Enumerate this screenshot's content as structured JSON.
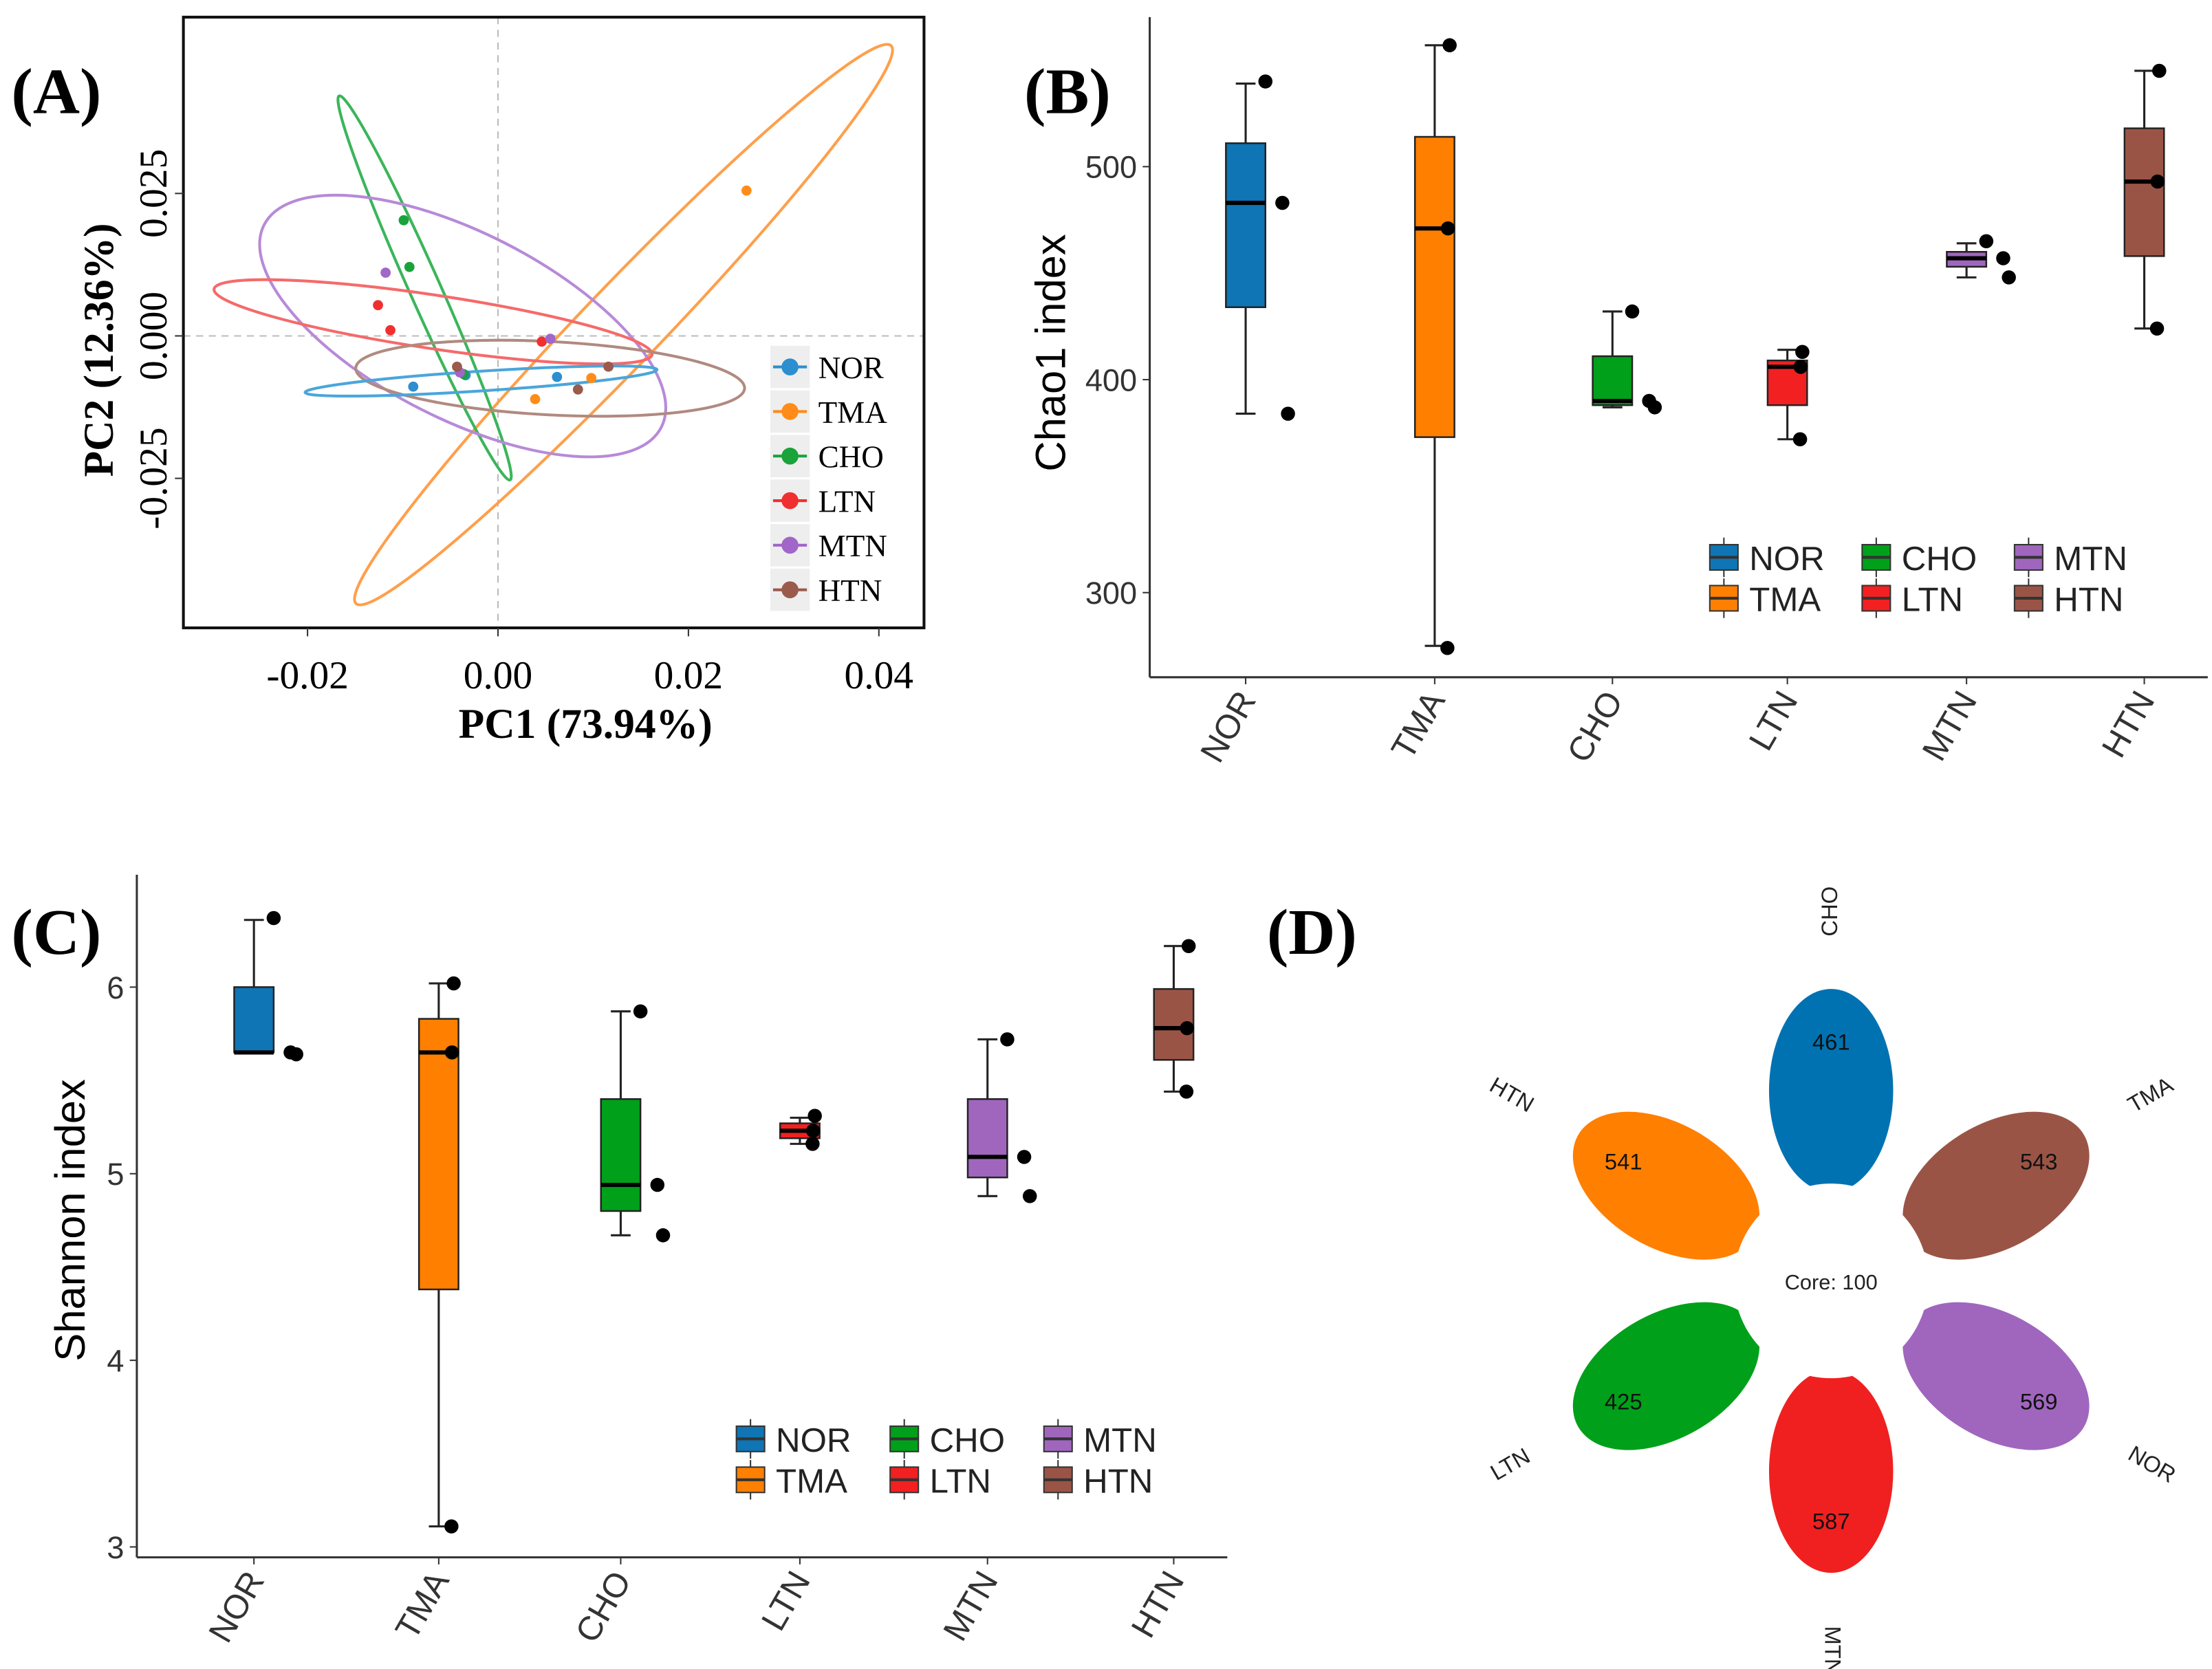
{
  "chart_data": [
    {
      "panel": "(A)",
      "type": "scatter",
      "xlabel": "PC1 (73.94%)",
      "ylabel": "PC2 (12.36%)",
      "xlim": [
        -0.033,
        0.045
      ],
      "ylim": [
        -0.0515,
        0.056
      ],
      "xticks": [
        {
          "v": -0.02,
          "label": "-0.02"
        },
        {
          "v": 0.0,
          "label": "0.00"
        },
        {
          "v": 0.02,
          "label": "0.02"
        },
        {
          "v": 0.04,
          "label": "0.04"
        }
      ],
      "yticks": [
        {
          "v": -0.025,
          "label": "-0.025"
        },
        {
          "v": 0.0,
          "label": "0.000"
        },
        {
          "v": 0.025,
          "label": "0.025"
        }
      ],
      "grid": false,
      "legend": "right",
      "series": [
        {
          "name": "NOR",
          "color": "#2c8fcf",
          "points": [
            [
              -0.0089,
              -0.0089
            ],
            [
              -0.0034,
              -0.0069
            ],
            [
              0.0062,
              -0.0072
            ]
          ]
        },
        {
          "name": "TMA",
          "color": "#ff8c1a",
          "points": [
            [
              0.0261,
              0.0255
            ],
            [
              0.0039,
              -0.0111
            ],
            [
              0.0098,
              -0.0074
            ]
          ]
        },
        {
          "name": "CHO",
          "color": "#1aa33a",
          "points": [
            [
              -0.0099,
              0.0203
            ],
            [
              -0.0093,
              0.0121
            ],
            [
              -0.0036,
              -0.0067
            ]
          ]
        },
        {
          "name": "LTN",
          "color": "#f03030",
          "points": [
            [
              -0.0126,
              0.0054
            ],
            [
              -0.0113,
              0.001
            ],
            [
              0.0046,
              -0.001
            ]
          ]
        },
        {
          "name": "MTN",
          "color": "#a066c8",
          "points": [
            [
              -0.0118,
              0.0111
            ],
            [
              0.0055,
              -0.0005
            ],
            [
              -0.004,
              -0.0064
            ]
          ]
        },
        {
          "name": "HTN",
          "color": "#9a5a4c",
          "points": [
            [
              -0.0043,
              -0.0054
            ],
            [
              0.0084,
              -0.0094
            ],
            [
              0.0116,
              -0.0054
            ]
          ]
        }
      ]
    },
    {
      "panel": "(B)",
      "type": "box",
      "ylabel": "Chao1 index",
      "ylim": [
        262,
        571
      ],
      "yticks": [
        {
          "v": 300,
          "label": "300"
        },
        {
          "v": 400,
          "label": "400"
        },
        {
          "v": 500,
          "label": "500"
        }
      ],
      "categories": [
        "NOR",
        "TMA",
        "CHO",
        "LTN",
        "MTN",
        "HTN"
      ],
      "legend": "bottom-right",
      "series": [
        {
          "name": "NOR",
          "color": "#0f75b5",
          "min": 384,
          "q1": 434,
          "median": 483,
          "q3": 511,
          "max": 539,
          "points": [
            540,
            483,
            384
          ]
        },
        {
          "name": "TMA",
          "color": "#ff7f00",
          "min": 275,
          "q1": 373,
          "median": 471,
          "q3": 514,
          "max": 557,
          "points": [
            557,
            471,
            274
          ]
        },
        {
          "name": "CHO",
          "color": "#00a01a",
          "min": 387,
          "q1": 388,
          "median": 390,
          "q3": 411,
          "max": 432,
          "points": [
            432,
            390,
            387
          ]
        },
        {
          "name": "LTN",
          "color": "#f22020",
          "min": 372,
          "q1": 388,
          "median": 406,
          "q3": 409,
          "max": 414,
          "points": [
            413,
            406,
            372
          ]
        },
        {
          "name": "MTN",
          "color": "#a066be",
          "min": 448,
          "q1": 453,
          "median": 457,
          "q3": 460,
          "max": 464,
          "points": [
            465,
            457,
            448
          ]
        },
        {
          "name": "HTN",
          "color": "#9a5446",
          "min": 424,
          "q1": 458,
          "median": 493,
          "q3": 518,
          "max": 545,
          "points": [
            545,
            493,
            424
          ]
        }
      ]
    },
    {
      "panel": "(C)",
      "type": "box",
      "ylabel": "Shannon index",
      "ylim": [
        2.95,
        6.5
      ],
      "yticks": [
        {
          "v": 3,
          "label": "3"
        },
        {
          "v": 4,
          "label": "4"
        },
        {
          "v": 5,
          "label": "5"
        },
        {
          "v": 6,
          "label": "6"
        }
      ],
      "categories": [
        "NOR",
        "TMA",
        "CHO",
        "LTN",
        "MTN",
        "HTN"
      ],
      "legend": "bottom-right",
      "series": [
        {
          "name": "NOR",
          "color": "#0f75b5",
          "min": 5.65,
          "q1": 5.65,
          "median": 5.65,
          "q3": 6.0,
          "max": 6.36,
          "points": [
            6.37,
            5.65,
            5.64
          ]
        },
        {
          "name": "TMA",
          "color": "#ff7f00",
          "min": 3.11,
          "q1": 4.38,
          "median": 5.65,
          "q3": 5.83,
          "max": 6.02,
          "points": [
            6.02,
            5.65,
            3.11
          ]
        },
        {
          "name": "CHO",
          "color": "#00a01a",
          "min": 4.67,
          "q1": 4.8,
          "median": 4.94,
          "q3": 5.4,
          "max": 5.87,
          "points": [
            5.87,
            4.94,
            4.67
          ]
        },
        {
          "name": "LTN",
          "color": "#f22020",
          "min": 5.16,
          "q1": 5.19,
          "median": 5.23,
          "q3": 5.27,
          "max": 5.3,
          "points": [
            5.31,
            5.23,
            5.16
          ]
        },
        {
          "name": "MTN",
          "color": "#a066be",
          "min": 4.88,
          "q1": 4.98,
          "median": 5.09,
          "q3": 5.4,
          "max": 5.72,
          "points": [
            5.72,
            5.09,
            4.88
          ]
        },
        {
          "name": "HTN",
          "color": "#9a5446",
          "min": 5.44,
          "q1": 5.61,
          "median": 5.78,
          "q3": 5.99,
          "max": 6.22,
          "points": [
            6.22,
            5.78,
            5.44
          ]
        }
      ]
    },
    {
      "panel": "(D)",
      "type": "flower",
      "core_label": "Core: 100",
      "petals": [
        {
          "name": "CHO",
          "count": 461,
          "color": "#0072b2",
          "angle_deg": -90
        },
        {
          "name": "TMA",
          "count": 543,
          "color": "#9a5446",
          "angle_deg": -30
        },
        {
          "name": "NOR",
          "count": 569,
          "color": "#a066be",
          "angle_deg": 30
        },
        {
          "name": "MTN",
          "count": 587,
          "color": "#f02020",
          "angle_deg": 90
        },
        {
          "name": "LTN",
          "count": 425,
          "color": "#00a01a",
          "angle_deg": 150
        },
        {
          "name": "HTN",
          "count": 541,
          "color": "#ff7f00",
          "angle_deg": 210
        }
      ]
    }
  ],
  "panel_labels": {
    "a": "(A)",
    "b": "(B)",
    "c": "(C)",
    "d": "(D)"
  }
}
